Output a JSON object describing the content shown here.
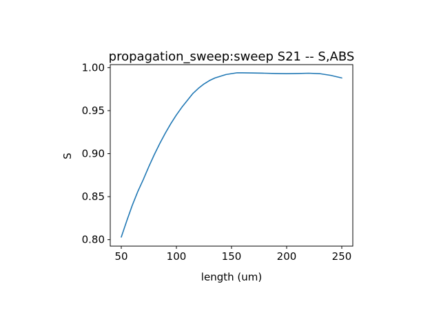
{
  "chart_data": {
    "type": "line",
    "title": "propagation_sweep:sweep S21 -- S,ABS",
    "xlabel": "length (um)",
    "ylabel": "S",
    "xlim": [
      40,
      260
    ],
    "ylim": [
      0.7925,
      1.0035
    ],
    "xticks": [
      50,
      100,
      150,
      200,
      250
    ],
    "yticks": [
      0.8,
      0.85,
      0.9,
      0.95,
      1.0
    ],
    "xtick_labels": [
      "50",
      "100",
      "150",
      "200",
      "250"
    ],
    "ytick_labels": [
      "0.80",
      "0.85",
      "0.90",
      "0.95",
      "1.00"
    ],
    "grid": false,
    "series": [
      {
        "color": "#1f77b4",
        "x": [
          50,
          55,
          60,
          65,
          70,
          75,
          80,
          85,
          90,
          95,
          100,
          105,
          110,
          115,
          120,
          125,
          130,
          135,
          140,
          145,
          150,
          155,
          160,
          170,
          180,
          190,
          200,
          210,
          220,
          230,
          240,
          250
        ],
        "y": [
          0.803,
          0.822,
          0.84,
          0.856,
          0.87,
          0.885,
          0.899,
          0.912,
          0.924,
          0.935,
          0.945,
          0.954,
          0.962,
          0.97,
          0.976,
          0.981,
          0.985,
          0.988,
          0.99,
          0.992,
          0.993,
          0.994,
          0.994,
          0.9938,
          0.9935,
          0.9932,
          0.993,
          0.9932,
          0.9935,
          0.993,
          0.991,
          0.988
        ]
      }
    ]
  }
}
